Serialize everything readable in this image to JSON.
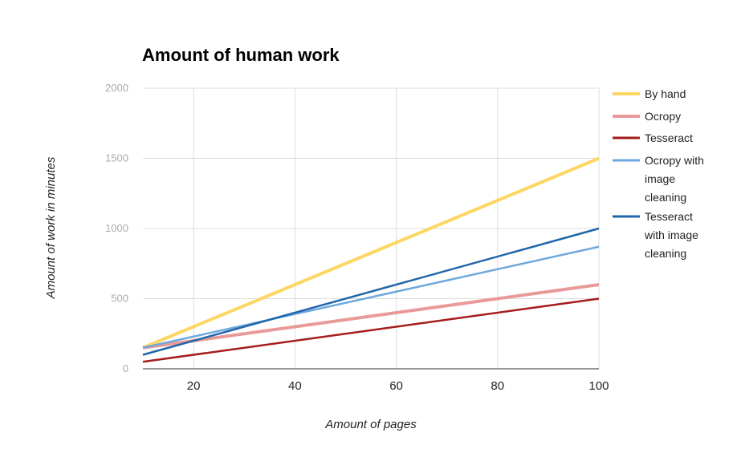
{
  "chart_data": {
    "type": "line",
    "title": "Amount of human work",
    "xlabel": "Amount of pages",
    "ylabel": "Amount of work in minutes",
    "xlim": [
      10,
      100
    ],
    "ylim": [
      0,
      2000
    ],
    "x_ticks": [
      "20",
      "40",
      "60",
      "80",
      "100"
    ],
    "y_ticks": [
      "0",
      "500",
      "1000",
      "1500",
      "2000"
    ],
    "grid": true,
    "legend_position": "right",
    "x": [
      10,
      100
    ],
    "series": [
      {
        "name": "By hand",
        "values": [
          150,
          1500
        ],
        "color": "#fdd663",
        "width": "thick"
      },
      {
        "name": "Ocropy",
        "values": [
          150,
          600
        ],
        "color": "#ea9999",
        "width": "thick"
      },
      {
        "name": "Tesseract",
        "values": [
          50,
          500
        ],
        "color": "#a61c1c",
        "width": "normal"
      },
      {
        "name": "Ocropy with image cleaning",
        "values": [
          150,
          870
        ],
        "color": "#6fa8dc",
        "width": "normal"
      },
      {
        "name": "Tesseract with image cleaning",
        "values": [
          100,
          1000
        ],
        "color": "#2266aa",
        "width": "normal"
      }
    ]
  },
  "legend_lines": [
    [
      "By hand"
    ],
    [
      "Ocropy"
    ],
    [
      "Tesseract"
    ],
    [
      "Ocropy with",
      "image",
      "cleaning"
    ],
    [
      "Tesseract",
      "with image",
      "cleaning"
    ]
  ]
}
